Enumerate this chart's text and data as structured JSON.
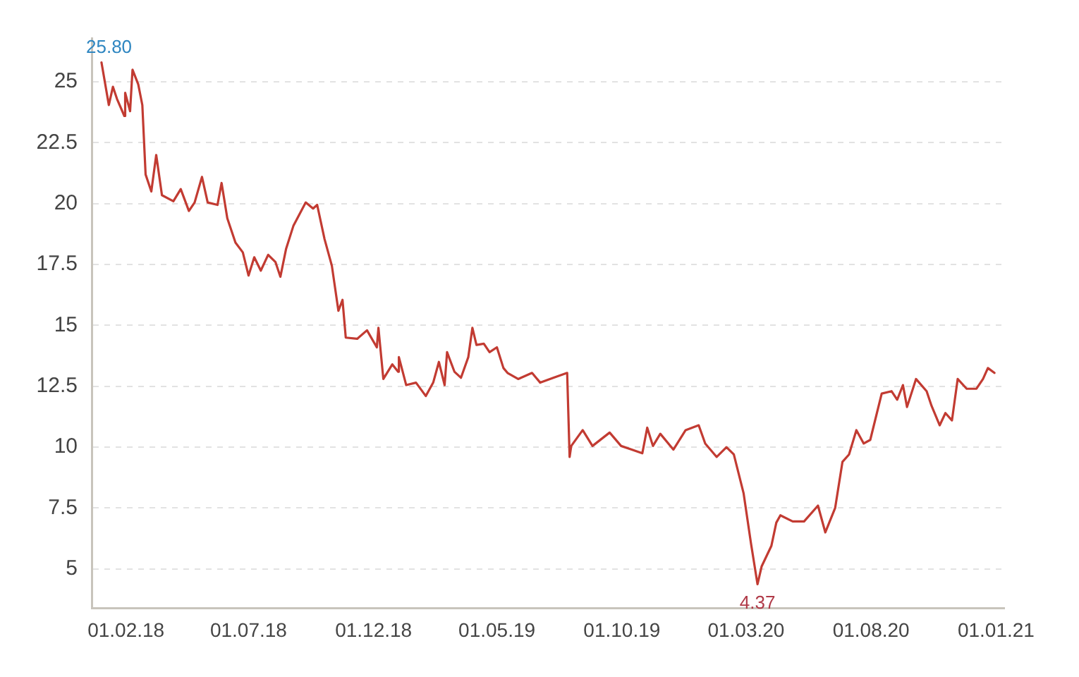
{
  "chart_data": {
    "type": "line",
    "x": [
      "2018-01-02",
      "2018-01-11",
      "2018-01-16",
      "2018-01-21",
      "2018-01-30",
      "2018-01-31",
      "2018-02-06",
      "2018-02-09",
      "2018-02-16",
      "2018-02-21",
      "2018-02-25",
      "2018-03-04",
      "2018-03-10",
      "2018-03-17",
      "2018-03-31",
      "2018-04-09",
      "2018-04-19",
      "2018-04-26",
      "2018-05-05",
      "2018-05-12",
      "2018-05-24",
      "2018-05-29",
      "2018-06-05",
      "2018-06-15",
      "2018-06-24",
      "2018-07-01",
      "2018-07-08",
      "2018-07-16",
      "2018-07-25",
      "2018-08-03",
      "2018-08-09",
      "2018-08-16",
      "2018-08-25",
      "2018-09-09",
      "2018-09-18",
      "2018-09-23",
      "2018-10-02",
      "2018-10-11",
      "2018-10-19",
      "2018-10-24",
      "2018-10-28",
      "2018-11-11",
      "2018-11-23",
      "2018-12-05",
      "2018-12-07",
      "2018-12-13",
      "2018-12-24",
      "2018-12-31",
      "2019-01-01",
      "2019-01-10",
      "2019-01-22",
      "2019-02-03",
      "2019-02-12",
      "2019-02-19",
      "2019-02-26",
      "2019-03-01",
      "2019-03-10",
      "2019-03-18",
      "2019-03-27",
      "2019-04-01",
      "2019-04-06",
      "2019-04-15",
      "2019-04-22",
      "2019-05-01",
      "2019-05-09",
      "2019-05-14",
      "2019-05-27",
      "2019-06-13",
      "2019-06-23",
      "2019-07-09",
      "2019-07-26",
      "2019-07-29",
      "2019-07-31",
      "2019-08-14",
      "2019-08-26",
      "2019-09-16",
      "2019-09-30",
      "2019-10-13",
      "2019-10-26",
      "2019-11-01",
      "2019-11-08",
      "2019-11-17",
      "2019-12-03",
      "2019-12-18",
      "2020-01-03",
      "2020-01-11",
      "2020-01-25",
      "2020-02-06",
      "2020-02-15",
      "2020-02-27",
      "2020-03-07",
      "2020-03-12",
      "2020-03-15",
      "2020-03-20",
      "2020-04-01",
      "2020-04-07",
      "2020-04-12",
      "2020-04-27",
      "2020-05-11",
      "2020-05-28",
      "2020-06-06",
      "2020-06-18",
      "2020-06-27",
      "2020-07-05",
      "2020-07-14",
      "2020-07-23",
      "2020-07-31",
      "2020-08-14",
      "2020-08-26",
      "2020-09-02",
      "2020-09-09",
      "2020-09-14",
      "2020-09-25",
      "2020-10-08",
      "2020-10-14",
      "2020-10-24",
      "2020-10-31",
      "2020-11-08",
      "2020-11-15",
      "2020-11-26",
      "2020-12-08",
      "2020-12-16",
      "2020-12-22",
      "2020-12-30"
    ],
    "series": [
      {
        "color": "#c23b32",
        "values": [
          25.8,
          24.05,
          24.8,
          24.3,
          23.6,
          24.55,
          23.8,
          25.5,
          24.9,
          24.05,
          21.2,
          20.5,
          22.0,
          20.35,
          20.1,
          20.6,
          19.7,
          20.05,
          21.1,
          20.05,
          19.95,
          20.85,
          19.4,
          18.4,
          18.0,
          17.05,
          17.8,
          17.25,
          17.9,
          17.6,
          17.0,
          18.15,
          19.1,
          20.05,
          19.8,
          19.95,
          18.55,
          17.45,
          15.6,
          16.05,
          14.5,
          14.45,
          14.8,
          14.1,
          14.9,
          12.8,
          13.4,
          13.1,
          13.7,
          12.55,
          12.65,
          12.1,
          12.65,
          13.5,
          12.55,
          13.9,
          13.1,
          12.85,
          13.7,
          14.9,
          14.2,
          14.25,
          13.9,
          14.1,
          13.25,
          13.05,
          12.8,
          13.05,
          12.65,
          12.85,
          13.05,
          9.6,
          10.05,
          10.7,
          10.05,
          10.6,
          10.05,
          9.9,
          9.75,
          10.8,
          10.05,
          10.55,
          9.9,
          10.7,
          10.9,
          10.15,
          9.6,
          10.0,
          9.7,
          8.1,
          6.05,
          5.0,
          4.37,
          5.1,
          5.95,
          6.9,
          7.2,
          6.95,
          6.95,
          7.6,
          6.5,
          7.5,
          9.4,
          9.7,
          10.7,
          10.15,
          10.3,
          12.2,
          12.3,
          11.95,
          12.55,
          11.65,
          12.8,
          12.3,
          11.7,
          10.9,
          11.4,
          11.1,
          12.8,
          12.4,
          12.4,
          12.8,
          13.25,
          13.05
        ]
      }
    ],
    "xlim": [
      "2017-12-21",
      "2021-01-11"
    ],
    "xticks": [
      {
        "value": "2018-02-01",
        "label": "01.02.18"
      },
      {
        "value": "2018-07-01",
        "label": "01.07.18"
      },
      {
        "value": "2018-12-01",
        "label": "01.12.18"
      },
      {
        "value": "2019-05-01",
        "label": "01.05.19"
      },
      {
        "value": "2019-10-01",
        "label": "01.10.19"
      },
      {
        "value": "2020-03-01",
        "label": "01.03.20"
      },
      {
        "value": "2020-08-01",
        "label": "01.08.20"
      },
      {
        "value": "2021-01-01",
        "label": "01.01.21"
      }
    ],
    "ylim": [
      3.4,
      26.8
    ],
    "yticks": [
      5,
      7.5,
      10,
      12.5,
      15,
      17.5,
      20,
      22.5,
      25
    ],
    "grid": "y",
    "annotations": [
      {
        "text": "25.80",
        "x": "2018-01-02",
        "y": 25.8
      },
      {
        "text": "4.37",
        "x": "2020-03-15",
        "y": 4.37
      }
    ]
  }
}
